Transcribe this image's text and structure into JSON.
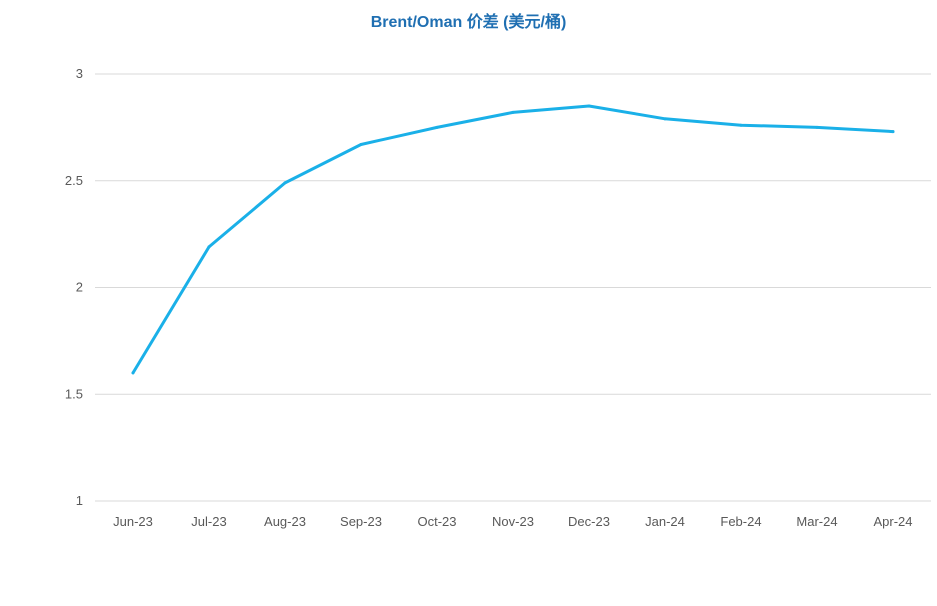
{
  "chart_data": {
    "type": "line",
    "title": "Brent/Oman 价差 (美元/桶)",
    "xlabel": "",
    "ylabel": "",
    "categories": [
      "Jun-23",
      "Jul-23",
      "Aug-23",
      "Sep-23",
      "Oct-23",
      "Nov-23",
      "Dec-23",
      "Jan-24",
      "Feb-24",
      "Mar-24",
      "Apr-24"
    ],
    "series": [
      {
        "values": [
          1.6,
          2.19,
          2.49,
          2.67,
          2.75,
          2.82,
          2.85,
          2.79,
          2.76,
          2.75,
          2.73
        ],
        "color": "#1ab0e8"
      }
    ],
    "ylim": [
      1,
      3
    ],
    "yticks": [
      "1",
      "1.5",
      "2",
      "2.5",
      "3"
    ],
    "grid": true,
    "legend": "none"
  }
}
